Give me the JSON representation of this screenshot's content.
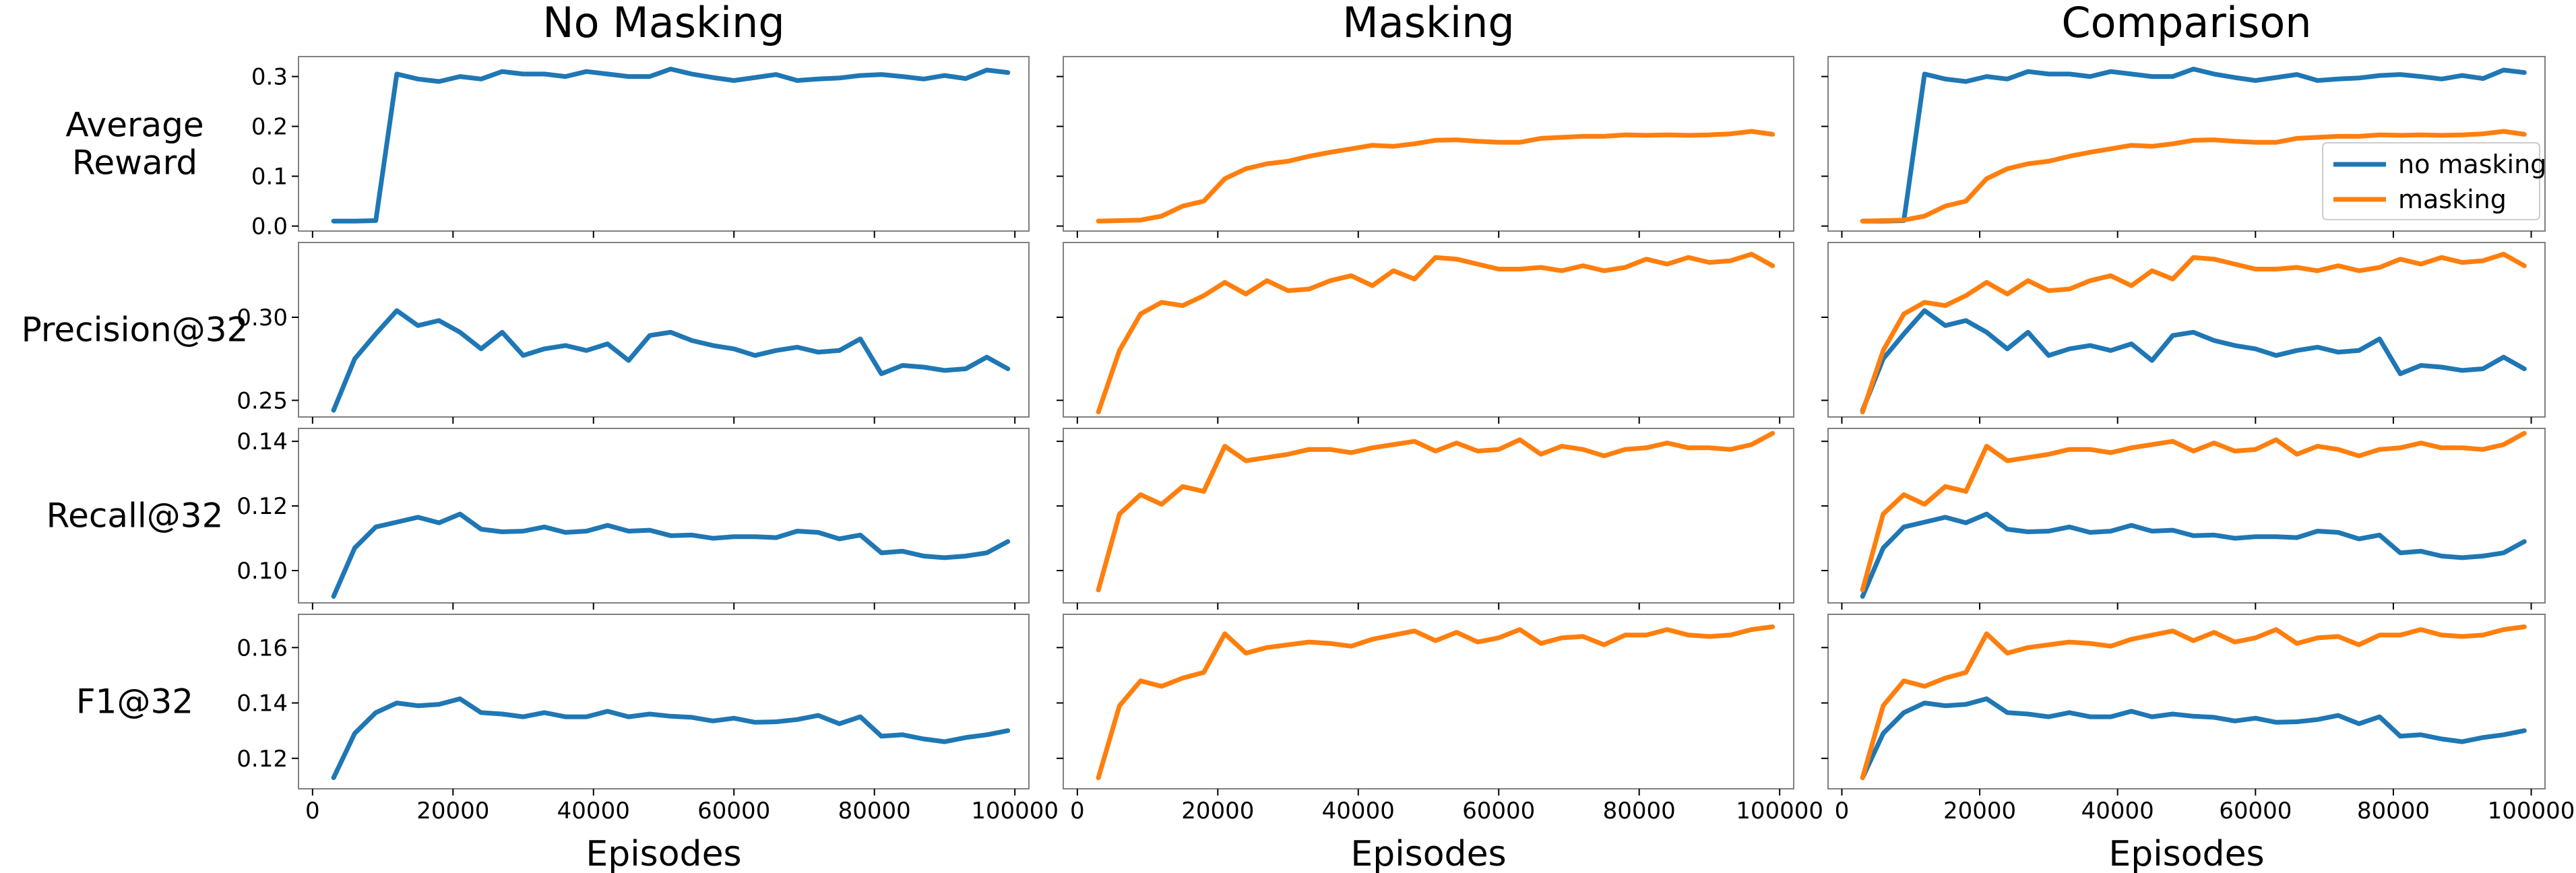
{
  "figure": {
    "column_titles": [
      "No Masking",
      "Masking",
      "Comparison"
    ],
    "row_labels": [
      [
        "Average",
        "Reward"
      ],
      [
        "Precision@32"
      ],
      [
        "Recall@32"
      ],
      [
        "F1@32"
      ]
    ],
    "xlabel": "Episodes",
    "legend": [
      {
        "name": "no masking",
        "color": "#1f77b4"
      },
      {
        "name": "masking",
        "color": "#ff7f0e"
      }
    ]
  },
  "chart_data": {
    "type": "line",
    "x": [
      3000,
      6000,
      9000,
      12000,
      15000,
      18000,
      21000,
      24000,
      27000,
      30000,
      33000,
      36000,
      39000,
      42000,
      45000,
      48000,
      51000,
      54000,
      57000,
      60000,
      63000,
      66000,
      69000,
      72000,
      75000,
      78000,
      81000,
      84000,
      87000,
      90000,
      93000,
      96000,
      99000
    ],
    "xlim": [
      -2000,
      102000
    ],
    "xticks": [
      0,
      20000,
      40000,
      60000,
      80000,
      100000
    ],
    "xtick_labels": [
      "0",
      "20000",
      "40000",
      "60000",
      "80000",
      "100000"
    ],
    "xlabel": "Episodes",
    "series_colors": {
      "no_masking": "#1f77b4",
      "masking": "#ff7f0e"
    },
    "rows": [
      {
        "metric": "Average Reward",
        "ylim": [
          -0.01,
          0.34
        ],
        "yticks": [
          0.0,
          0.1,
          0.2,
          0.3
        ],
        "ytick_labels": [
          "0.0",
          "0.1",
          "0.2",
          "0.3"
        ],
        "no_masking": [
          0.01,
          0.01,
          0.011,
          0.305,
          0.295,
          0.29,
          0.3,
          0.295,
          0.31,
          0.305,
          0.305,
          0.3,
          0.31,
          0.305,
          0.3,
          0.3,
          0.315,
          0.305,
          0.298,
          0.292,
          0.298,
          0.304,
          0.292,
          0.295,
          0.297,
          0.302,
          0.304,
          0.3,
          0.295,
          0.302,
          0.296,
          0.313,
          0.308
        ],
        "masking": [
          0.01,
          0.011,
          0.012,
          0.02,
          0.04,
          0.05,
          0.095,
          0.115,
          0.125,
          0.13,
          0.14,
          0.148,
          0.155,
          0.162,
          0.16,
          0.165,
          0.172,
          0.173,
          0.17,
          0.168,
          0.168,
          0.176,
          0.178,
          0.18,
          0.18,
          0.183,
          0.182,
          0.183,
          0.182,
          0.183,
          0.185,
          0.19,
          0.184
        ]
      },
      {
        "metric": "Precision@32",
        "ylim": [
          0.24,
          0.345
        ],
        "yticks": [
          0.25,
          0.3
        ],
        "ytick_labels": [
          "0.25",
          "0.30"
        ],
        "no_masking": [
          0.244,
          0.275,
          0.29,
          0.304,
          0.295,
          0.298,
          0.291,
          0.281,
          0.291,
          0.277,
          0.281,
          0.283,
          0.28,
          0.284,
          0.274,
          0.289,
          0.291,
          0.286,
          0.283,
          0.281,
          0.277,
          0.28,
          0.282,
          0.279,
          0.28,
          0.287,
          0.266,
          0.271,
          0.27,
          0.268,
          0.269,
          0.276,
          0.269
        ],
        "masking": [
          0.243,
          0.28,
          0.302,
          0.309,
          0.307,
          0.313,
          0.321,
          0.314,
          0.322,
          0.316,
          0.317,
          0.322,
          0.325,
          0.319,
          0.328,
          0.323,
          0.336,
          0.335,
          0.332,
          0.329,
          0.329,
          0.33,
          0.328,
          0.331,
          0.328,
          0.33,
          0.335,
          0.332,
          0.336,
          0.333,
          0.334,
          0.338,
          0.331
        ]
      },
      {
        "metric": "Recall@32",
        "ylim": [
          0.09,
          0.144
        ],
        "yticks": [
          0.1,
          0.12,
          0.14
        ],
        "ytick_labels": [
          "0.10",
          "0.12",
          "0.14"
        ],
        "no_masking": [
          0.092,
          0.107,
          0.1135,
          0.115,
          0.1165,
          0.1148,
          0.1175,
          0.1128,
          0.112,
          0.1122,
          0.1135,
          0.1118,
          0.1122,
          0.114,
          0.1122,
          0.1125,
          0.1108,
          0.111,
          0.11,
          0.1105,
          0.1105,
          0.1102,
          0.1122,
          0.1118,
          0.1098,
          0.111,
          0.1055,
          0.106,
          0.1045,
          0.104,
          0.1045,
          0.1055,
          0.109
        ],
        "masking": [
          0.094,
          0.1175,
          0.1235,
          0.1205,
          0.126,
          0.1245,
          0.1385,
          0.134,
          0.135,
          0.136,
          0.1375,
          0.1375,
          0.1365,
          0.138,
          0.139,
          0.14,
          0.137,
          0.1395,
          0.137,
          0.1375,
          0.1405,
          0.136,
          0.1385,
          0.1375,
          0.1355,
          0.1375,
          0.138,
          0.1395,
          0.138,
          0.138,
          0.1375,
          0.139,
          0.1425
        ]
      },
      {
        "metric": "F1@32",
        "ylim": [
          0.109,
          0.172
        ],
        "yticks": [
          0.12,
          0.14,
          0.16
        ],
        "ytick_labels": [
          "0.12",
          "0.14",
          "0.16"
        ],
        "no_masking": [
          0.113,
          0.129,
          0.1365,
          0.14,
          0.139,
          0.1395,
          0.1415,
          0.1365,
          0.136,
          0.135,
          0.1365,
          0.135,
          0.135,
          0.137,
          0.135,
          0.136,
          0.1352,
          0.1348,
          0.1335,
          0.1345,
          0.133,
          0.1332,
          0.134,
          0.1355,
          0.1325,
          0.135,
          0.128,
          0.1285,
          0.127,
          0.126,
          0.1275,
          0.1285,
          0.13
        ],
        "masking": [
          0.113,
          0.139,
          0.148,
          0.146,
          0.149,
          0.151,
          0.165,
          0.158,
          0.16,
          0.161,
          0.162,
          0.1615,
          0.1605,
          0.163,
          0.1645,
          0.166,
          0.1625,
          0.1655,
          0.162,
          0.1635,
          0.1665,
          0.1615,
          0.1635,
          0.164,
          0.161,
          0.1645,
          0.1645,
          0.1665,
          0.1645,
          0.164,
          0.1645,
          0.1665,
          0.1675
        ]
      }
    ]
  }
}
